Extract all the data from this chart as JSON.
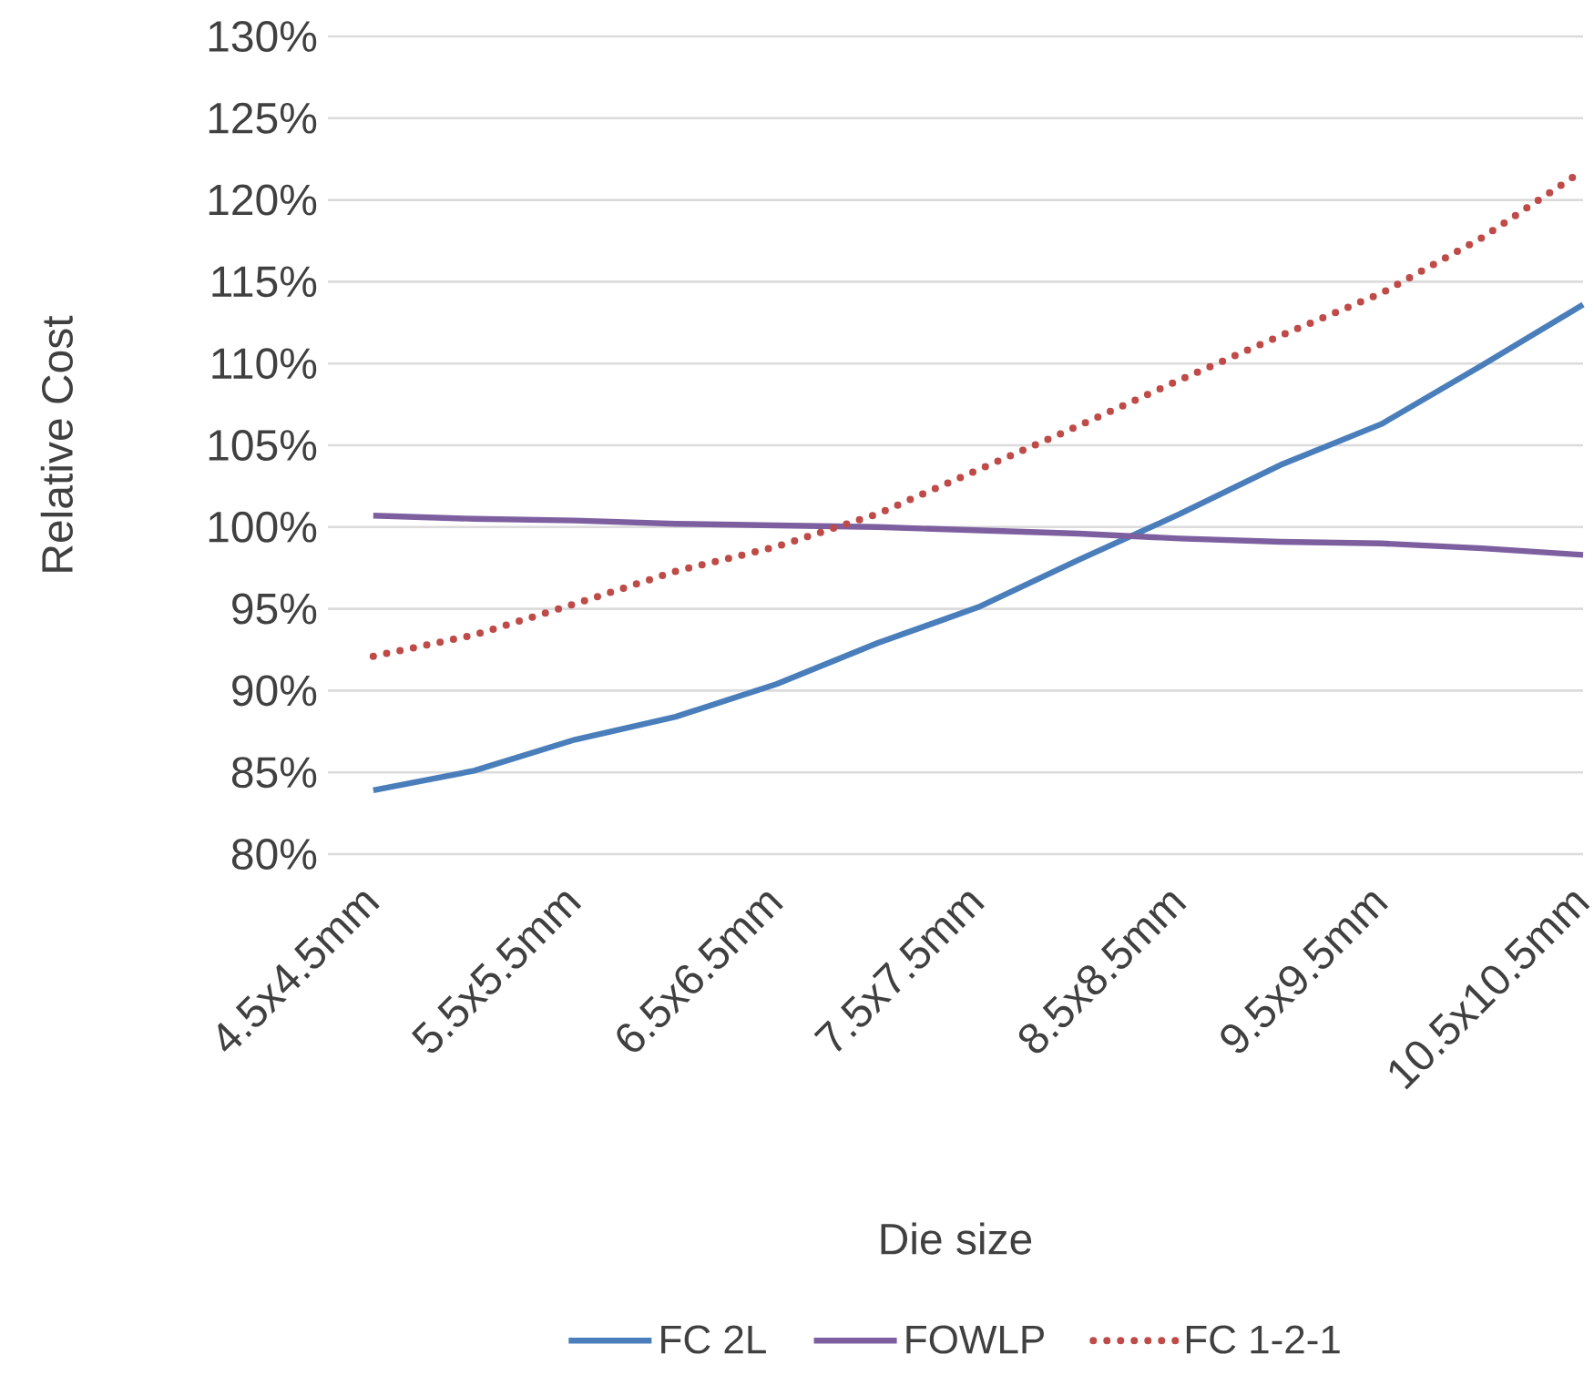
{
  "chart_data": {
    "type": "line",
    "xlabel": "Die size",
    "ylabel": "Relative Cost",
    "categories": [
      "4.5x4.5mm",
      null,
      "5.5x5.5mm",
      null,
      "6.5x6.5mm",
      null,
      "7.5x7.5mm",
      null,
      "8.5x8.5mm",
      null,
      "9.5x9.5mm",
      null,
      "10.5x10.5mm"
    ],
    "series": [
      {
        "name": "FC 2L",
        "color": "#4a7ebb",
        "line_style": "solid",
        "values": [
          83.9,
          85.1,
          87.0,
          88.4,
          90.4,
          92.9,
          95.1,
          98.0,
          100.8,
          103.8,
          106.3,
          109.9,
          113.6
        ]
      },
      {
        "name": "FOWLP",
        "color": "#7d5fa0",
        "line_style": "solid",
        "values": [
          100.7,
          100.5,
          100.4,
          100.2,
          100.1,
          100.0,
          99.8,
          99.6,
          99.3,
          99.1,
          99.0,
          98.7,
          98.3
        ]
      },
      {
        "name": "FC 1-2-1",
        "color": "#be4b48",
        "line_style": "dotted",
        "values": [
          92.1,
          93.4,
          95.3,
          97.3,
          98.8,
          100.8,
          103.5,
          106.2,
          109.0,
          111.7,
          114.3,
          117.7,
          121.8
        ]
      }
    ],
    "ylim": [
      80,
      130
    ],
    "yticks": [
      {
        "value": 80,
        "label": "80%"
      },
      {
        "value": 85,
        "label": "85%"
      },
      {
        "value": 90,
        "label": "90%"
      },
      {
        "value": 95,
        "label": "95%"
      },
      {
        "value": 100,
        "label": "100%"
      },
      {
        "value": 105,
        "label": "105%"
      },
      {
        "value": 110,
        "label": "110%"
      },
      {
        "value": 115,
        "label": "115%"
      },
      {
        "value": 120,
        "label": "120%"
      },
      {
        "value": 125,
        "label": "125%"
      },
      {
        "value": 130,
        "label": "130%"
      }
    ],
    "grid": "y",
    "legend": "bottom"
  }
}
